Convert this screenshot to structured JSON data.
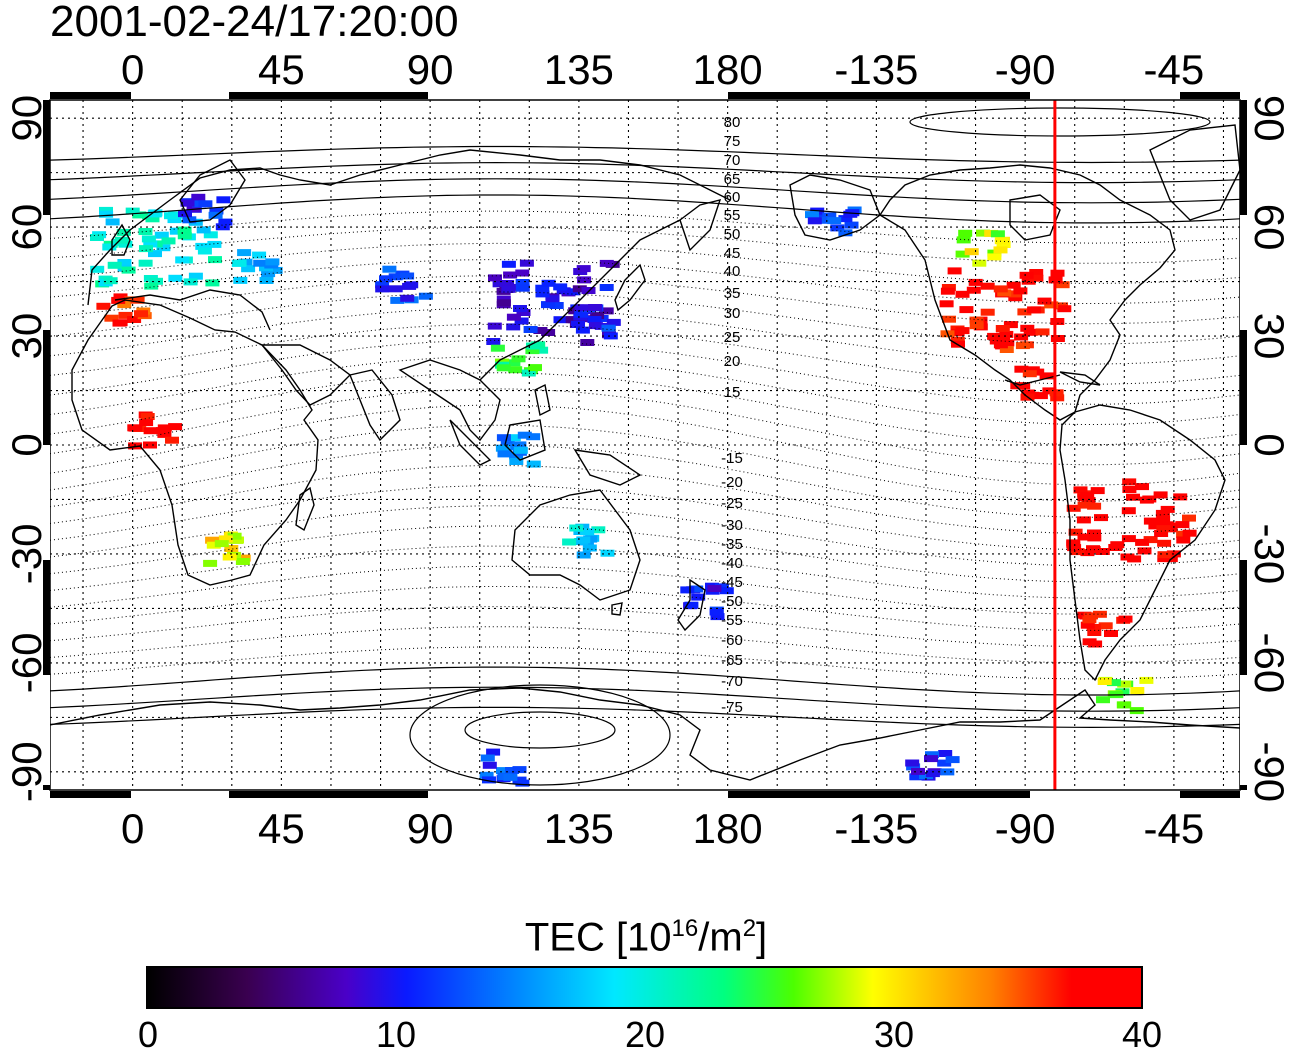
{
  "timestamp": "2001-02-24/17:20:00",
  "map": {
    "lon_ticks_top": [
      "0",
      "45",
      "90",
      "135",
      "180",
      "-135",
      "-90",
      "-45"
    ],
    "lon_ticks_bottom": [
      "0",
      "45",
      "90",
      "135",
      "180",
      "-135",
      "-90",
      "-45"
    ],
    "lat_ticks_left": [
      "90",
      "60",
      "30",
      "0",
      "-30",
      "-60",
      "-90"
    ],
    "lat_ticks_right": [
      "90",
      "60",
      "30",
      "0",
      "-30",
      "-60",
      "-90"
    ],
    "lon_range": [
      -25,
      335
    ],
    "lat_range": [
      -95,
      95
    ],
    "magnetic_latitude_labels": [
      "80",
      "75",
      "70",
      "65",
      "60",
      "55",
      "50",
      "45",
      "40",
      "35",
      "30",
      "25",
      "20",
      "15",
      "-15",
      "-20",
      "-25",
      "-30",
      "-35",
      "-40",
      "-45",
      "-50",
      "-55",
      "-60",
      "-65",
      "-70",
      "-75"
    ],
    "terminator_longitude": -81,
    "terminator_color": "#ff0000"
  },
  "colorbar": {
    "title_main": "TEC  [10",
    "title_sup1": "16",
    "title_mid": "/m",
    "title_sup2": "2",
    "title_end": "]",
    "labels": [
      "0",
      "10",
      "20",
      "30",
      "40"
    ],
    "min": 0,
    "max": 40
  },
  "tec_patches": [
    {
      "region": "Europe",
      "lon": 5,
      "lat": 55,
      "tec": 20
    },
    {
      "region": "Iberia",
      "lon": -5,
      "lat": 38,
      "tec": 37
    },
    {
      "region": "Scandinavia",
      "lon": 20,
      "lat": 65,
      "tec": 11
    },
    {
      "region": "Eastern Europe",
      "lon": 35,
      "lat": 50,
      "tec": 17
    },
    {
      "region": "Central Asia",
      "lon": 80,
      "lat": 45,
      "tec": 12
    },
    {
      "region": "East Asia",
      "lon": 125,
      "lat": 40,
      "tec": 9
    },
    {
      "region": "Japan",
      "lon": 138,
      "lat": 35,
      "tec": 11
    },
    {
      "region": "South China",
      "lon": 115,
      "lat": 25,
      "tec": 24
    },
    {
      "region": "Alaska",
      "lon": -150,
      "lat": 62,
      "tec": 12
    },
    {
      "region": "North America",
      "lon": -98,
      "lat": 38,
      "tec": 38
    },
    {
      "region": "Canada",
      "lon": -105,
      "lat": 55,
      "tec": 28
    },
    {
      "region": "Central America",
      "lon": -88,
      "lat": 18,
      "tec": 39
    },
    {
      "region": "South America",
      "lon": -60,
      "lat": -20,
      "tec": 39
    },
    {
      "region": "Patagonia",
      "lon": -68,
      "lat": -50,
      "tec": 38
    },
    {
      "region": "Southern Africa",
      "lon": 25,
      "lat": -28,
      "tec": 30
    },
    {
      "region": "West Africa",
      "lon": 5,
      "lat": 5,
      "tec": 39
    },
    {
      "region": "Indonesia",
      "lon": 115,
      "lat": 0,
      "tec": 15
    },
    {
      "region": "Australia",
      "lon": 135,
      "lat": -25,
      "tec": 18
    },
    {
      "region": "New Zealand",
      "lon": 172,
      "lat": -42,
      "tec": 10
    },
    {
      "region": "Antarctic Peninsula",
      "lon": -62,
      "lat": -68,
      "tec": 27
    },
    {
      "region": "Antarctica",
      "lon": 110,
      "lat": -88,
      "tec": 12
    },
    {
      "region": "Antarctica West",
      "lon": -120,
      "lat": -88,
      "tec": 11
    }
  ]
}
